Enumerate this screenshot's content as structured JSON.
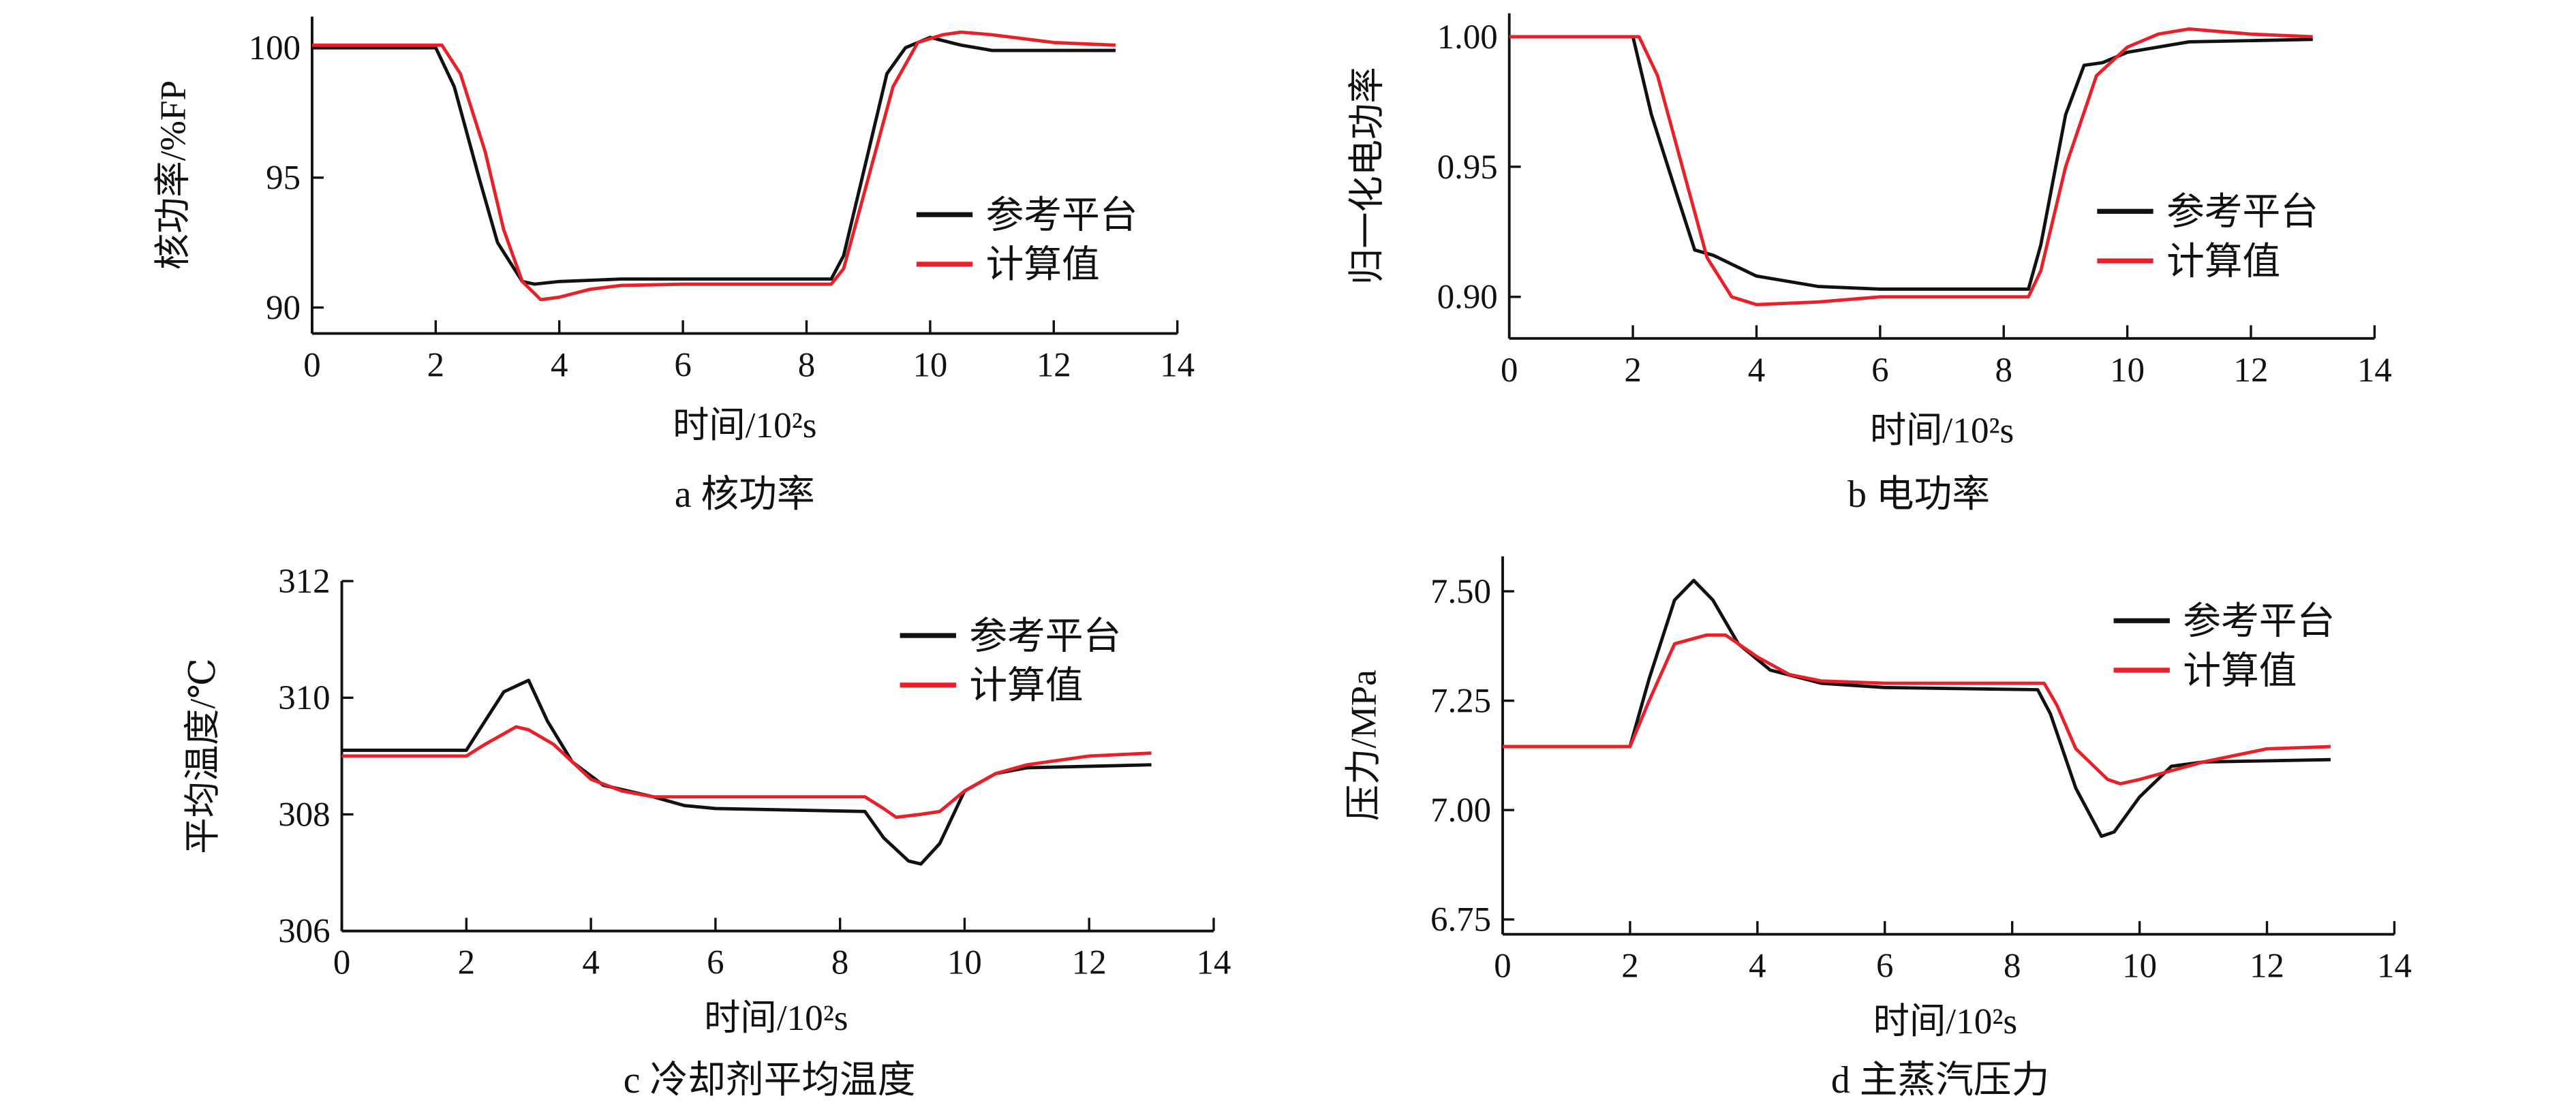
{
  "colors": {
    "reference": "#111111",
    "computed": "#e8202a"
  },
  "chart_data": [
    {
      "id": "a",
      "type": "line",
      "title": "a  核功率",
      "xlabel": "时间/10²s",
      "ylabel": "核功率/%FP",
      "xlim": [
        0,
        14
      ],
      "ylim": [
        89,
        101.2
      ],
      "xticks": [
        0,
        2,
        4,
        6,
        8,
        10,
        12,
        14
      ],
      "yticks": [
        90,
        95,
        100
      ],
      "ytick_labels": [
        "90",
        "95",
        "100"
      ],
      "legend": "center-right",
      "series": [
        {
          "name": "参考平台",
          "x": [
            0,
            2,
            2.3,
            2.7,
            3,
            3.4,
            3.6,
            4,
            5,
            6,
            8,
            8.4,
            8.6,
            9,
            9.3,
            9.6,
            10,
            10.5,
            11,
            13
          ],
          "y": [
            100,
            100,
            98.5,
            95,
            92.5,
            91,
            90.9,
            91,
            91.1,
            91.1,
            91.1,
            91.1,
            92,
            96,
            99,
            100,
            100.4,
            100.1,
            99.9,
            99.9
          ]
        },
        {
          "name": "计算值",
          "x": [
            0,
            2.1,
            2.4,
            2.8,
            3.1,
            3.4,
            3.7,
            4,
            4.5,
            5,
            6,
            8.4,
            8.6,
            9,
            9.4,
            9.8,
            10.2,
            10.5,
            11,
            12,
            13
          ],
          "y": [
            100.1,
            100.1,
            99,
            96,
            93,
            91,
            90.3,
            90.4,
            90.7,
            90.85,
            90.9,
            90.9,
            91.5,
            95,
            98.5,
            100.2,
            100.5,
            100.6,
            100.5,
            100.2,
            100.1
          ]
        }
      ]
    },
    {
      "id": "b",
      "type": "line",
      "title": "b  电功率",
      "xlabel": "时间/10²s",
      "ylabel": "归一化电功率",
      "xlim": [
        0,
        14
      ],
      "ylim": [
        0.884,
        1.009
      ],
      "xticks": [
        0,
        2,
        4,
        6,
        8,
        10,
        12,
        14
      ],
      "yticks": [
        0.9,
        0.95,
        1.0
      ],
      "ytick_labels": [
        "0.90",
        "0.95",
        "1.00"
      ],
      "legend": "center-right",
      "series": [
        {
          "name": "参考平台",
          "x": [
            0,
            2,
            2.3,
            2.7,
            3,
            3.3,
            4,
            5,
            6,
            8.4,
            8.6,
            9,
            9.3,
            9.6,
            10,
            11,
            13
          ],
          "y": [
            1,
            1,
            0.97,
            0.94,
            0.918,
            0.916,
            0.908,
            0.904,
            0.903,
            0.903,
            0.92,
            0.97,
            0.989,
            0.99,
            0.994,
            0.998,
            0.999
          ]
        },
        {
          "name": "计算值",
          "x": [
            0,
            2.1,
            2.4,
            2.8,
            3.2,
            3.6,
            4,
            5,
            6,
            8.4,
            8.6,
            9,
            9.5,
            10,
            10.5,
            11,
            12,
            13
          ],
          "y": [
            1,
            1,
            0.985,
            0.95,
            0.915,
            0.9,
            0.897,
            0.898,
            0.9,
            0.9,
            0.91,
            0.95,
            0.985,
            0.996,
            1.001,
            1.003,
            1.001,
            1.0
          ]
        }
      ]
    },
    {
      "id": "c",
      "type": "line",
      "title": "c  冷却剂平均温度",
      "xlabel": "时间/10²s",
      "ylabel": "平均温度/℃",
      "xlim": [
        0,
        14
      ],
      "ylim": [
        306,
        312
      ],
      "xticks": [
        0,
        2,
        4,
        6,
        8,
        10,
        12,
        14
      ],
      "yticks": [
        306,
        308,
        310,
        312
      ],
      "ytick_labels": [
        "306",
        "308",
        "310",
        "312"
      ],
      "legend": "top-right",
      "series": [
        {
          "name": "参考平台",
          "x": [
            0,
            2,
            2.3,
            2.6,
            3,
            3.3,
            3.7,
            4.2,
            5,
            5.5,
            6,
            8.4,
            8.7,
            9.1,
            9.3,
            9.6,
            10,
            10.5,
            11,
            13
          ],
          "y": [
            309.1,
            309.1,
            309.6,
            310.1,
            310.3,
            309.6,
            308.9,
            308.5,
            308.3,
            308.15,
            308.1,
            308.05,
            307.6,
            307.2,
            307.15,
            307.5,
            308.4,
            308.7,
            308.8,
            308.85
          ]
        },
        {
          "name": "计算值",
          "x": [
            0,
            2,
            2.3,
            2.8,
            3,
            3.4,
            4,
            4.5,
            5,
            6,
            8.4,
            8.7,
            8.9,
            9.3,
            9.6,
            10,
            10.5,
            11,
            12,
            13
          ],
          "y": [
            309,
            309,
            309.2,
            309.5,
            309.45,
            309.2,
            308.6,
            308.4,
            308.3,
            308.3,
            308.3,
            308.1,
            307.95,
            308.0,
            308.05,
            308.4,
            308.7,
            308.85,
            309,
            309.05
          ]
        }
      ]
    },
    {
      "id": "d",
      "type": "line",
      "title": "d  主蒸汽压力",
      "xlabel": "时间/10²s",
      "ylabel": "压力/MPa",
      "xlim": [
        0,
        14
      ],
      "ylim": [
        6.716,
        7.58
      ],
      "xticks": [
        0,
        2,
        4,
        6,
        8,
        10,
        12,
        14
      ],
      "yticks": [
        6.75,
        7.0,
        7.25,
        7.5
      ],
      "ytick_labels": [
        "6.75",
        "7.00",
        "7.25",
        "7.50"
      ],
      "legend": "top-right",
      "series": [
        {
          "name": "参考平台",
          "x": [
            0,
            2,
            2.3,
            2.7,
            3,
            3.3,
            3.7,
            4.2,
            5,
            6,
            8.4,
            8.6,
            9,
            9.4,
            9.6,
            10,
            10.5,
            11,
            13
          ],
          "y": [
            7.145,
            7.145,
            7.3,
            7.48,
            7.525,
            7.48,
            7.38,
            7.32,
            7.29,
            7.28,
            7.275,
            7.22,
            7.05,
            6.94,
            6.95,
            7.03,
            7.1,
            7.11,
            7.115
          ]
        },
        {
          "name": "计算值",
          "x": [
            0,
            2,
            2.3,
            2.7,
            3.2,
            3.5,
            4,
            4.5,
            5,
            6,
            8.5,
            8.7,
            9,
            9.5,
            9.7,
            10,
            10.5,
            11,
            12,
            13
          ],
          "y": [
            7.145,
            7.145,
            7.25,
            7.38,
            7.4,
            7.4,
            7.35,
            7.31,
            7.295,
            7.29,
            7.29,
            7.24,
            7.14,
            7.07,
            7.06,
            7.07,
            7.09,
            7.11,
            7.14,
            7.145
          ]
        }
      ]
    }
  ]
}
